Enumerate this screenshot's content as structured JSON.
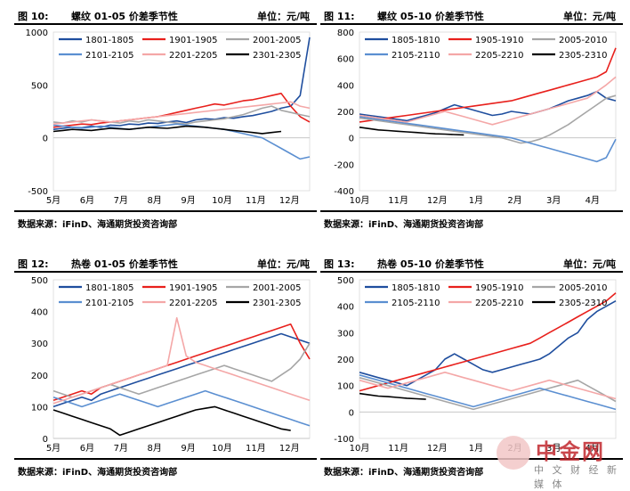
{
  "panels": [
    {
      "fig": "图 10:",
      "name": "螺纹 01-05 价差季节性",
      "unit": "单位：元/吨",
      "source": "数据来源：iFinD、海通期货投资咨询部"
    },
    {
      "fig": "图 11:",
      "name": "螺纹 05-10 价差季节性",
      "unit": "单位：元/吨",
      "source": "数据来源：iFinD、海通期货投资咨询部"
    },
    {
      "fig": "图 12:",
      "name": "热卷 01-05 价差季节性",
      "unit": "单位：元/吨",
      "source": "数据来源：iFinD、海通期货投资咨询部"
    },
    {
      "fig": "图 13:",
      "name": "热卷 05-10 价差季节性",
      "unit": "单位：元/吨",
      "source": "数据来源：iFinD、海通期货投资咨询部"
    }
  ],
  "watermark": {
    "brand": "中金网",
    "sub": "中 文 财 经 新 媒 体"
  },
  "chart_data": [
    {
      "type": "line",
      "ylim": [
        -500,
        1000
      ],
      "yticks": [
        -500,
        0,
        500,
        1000
      ],
      "xticks": [
        "5月",
        "6月",
        "7月",
        "8月",
        "9月",
        "10月",
        "11月",
        "12月"
      ],
      "legend": "top",
      "series": [
        {
          "name": "1801-1805",
          "color": "#1f4e9e",
          "y": [
            80,
            90,
            100,
            95,
            110,
            100,
            120,
            115,
            130,
            125,
            140,
            135,
            150,
            160,
            145,
            170,
            180,
            175,
            190,
            185,
            200,
            210,
            230,
            250,
            280,
            300,
            400,
            950
          ]
        },
        {
          "name": "1901-1905",
          "color": "#e8201c",
          "y": [
            100,
            110,
            120,
            130,
            125,
            140,
            150,
            160,
            170,
            180,
            190,
            200,
            220,
            240,
            260,
            280,
            300,
            320,
            310,
            330,
            350,
            360,
            380,
            400,
            420,
            300,
            200,
            150
          ]
        },
        {
          "name": "2001-2005",
          "color": "#a6a6a6",
          "y": [
            150,
            140,
            160,
            150,
            170,
            160,
            150,
            140,
            160,
            150,
            170,
            160,
            150,
            140,
            130,
            150,
            160,
            170,
            180,
            200,
            220,
            250,
            280,
            300,
            260,
            240,
            220,
            200
          ]
        },
        {
          "name": "2101-2105",
          "color": "#5b8fd1",
          "y": [
            120,
            110,
            100,
            90,
            100,
            110,
            100,
            90,
            80,
            90,
            100,
            110,
            120,
            130,
            120,
            110,
            100,
            90,
            80,
            60,
            40,
            20,
            0,
            -50,
            -100,
            -150,
            -200,
            -180
          ]
        },
        {
          "name": "2201-2205",
          "color": "#f4a7a7",
          "y": [
            130,
            140,
            150,
            160,
            170,
            160,
            150,
            160,
            170,
            180,
            190,
            200,
            210,
            220,
            230,
            240,
            250,
            260,
            270,
            280,
            290,
            300,
            310,
            320,
            330,
            340,
            300,
            280
          ]
        },
        {
          "name": "2301-2305",
          "color": "#000000",
          "y": [
            60,
            70,
            80,
            75,
            70,
            80,
            90,
            85,
            80,
            90,
            100,
            95,
            90,
            100,
            110,
            105,
            100,
            90,
            80,
            70,
            60,
            50,
            40,
            50,
            60
          ]
        }
      ]
    },
    {
      "type": "line",
      "ylim": [
        -400,
        800
      ],
      "yticks": [
        -400,
        -200,
        0,
        200,
        400,
        600,
        800
      ],
      "xticks": [
        "10月",
        "11月",
        "12月",
        "1月",
        "2月",
        "3月",
        "4月"
      ],
      "legend": "top",
      "series": [
        {
          "name": "1805-1810",
          "color": "#1f4e9e",
          "y": [
            180,
            170,
            160,
            150,
            140,
            130,
            150,
            170,
            190,
            220,
            250,
            230,
            210,
            190,
            170,
            180,
            200,
            190,
            180,
            200,
            220,
            250,
            280,
            300,
            320,
            350,
            300,
            280
          ]
        },
        {
          "name": "1905-1910",
          "color": "#e8201c",
          "y": [
            120,
            130,
            140,
            150,
            160,
            170,
            180,
            190,
            200,
            210,
            220,
            230,
            240,
            250,
            260,
            270,
            280,
            300,
            320,
            340,
            360,
            380,
            400,
            420,
            440,
            460,
            500,
            680
          ]
        },
        {
          "name": "2005-2010",
          "color": "#a6a6a6",
          "y": [
            150,
            140,
            130,
            120,
            110,
            100,
            90,
            80,
            70,
            60,
            50,
            40,
            30,
            20,
            10,
            0,
            -20,
            -40,
            -30,
            -10,
            20,
            60,
            100,
            150,
            200,
            250,
            300,
            320
          ]
        },
        {
          "name": "2105-2110",
          "color": "#5b8fd1",
          "y": [
            160,
            150,
            140,
            130,
            120,
            110,
            100,
            90,
            80,
            70,
            60,
            50,
            40,
            30,
            20,
            10,
            0,
            -20,
            -40,
            -60,
            -80,
            -100,
            -120,
            -140,
            -160,
            -180,
            -150,
            -10
          ]
        },
        {
          "name": "2205-2210",
          "color": "#f4a7a7",
          "y": [
            170,
            160,
            150,
            140,
            130,
            120,
            140,
            160,
            180,
            200,
            180,
            160,
            140,
            120,
            100,
            120,
            140,
            160,
            180,
            200,
            220,
            240,
            260,
            280,
            300,
            350,
            400,
            460
          ]
        },
        {
          "name": "2305-2310",
          "color": "#000000",
          "y": [
            80,
            70,
            60,
            55,
            50,
            45,
            40,
            35,
            30,
            28,
            25,
            22
          ]
        }
      ]
    },
    {
      "type": "line",
      "ylim": [
        0,
        500
      ],
      "yticks": [
        0,
        100,
        200,
        300,
        400,
        500
      ],
      "xticks": [
        "5月",
        "6月",
        "7月",
        "8月",
        "9月",
        "10月",
        "11月",
        "12月"
      ],
      "legend": "top",
      "series": [
        {
          "name": "1801-1805",
          "color": "#1f4e9e",
          "y": [
            100,
            110,
            120,
            130,
            120,
            140,
            150,
            160,
            170,
            180,
            190,
            200,
            210,
            220,
            230,
            240,
            250,
            260,
            270,
            280,
            290,
            300,
            310,
            320,
            330,
            320,
            310,
            300
          ]
        },
        {
          "name": "1901-1905",
          "color": "#e8201c",
          "y": [
            120,
            130,
            140,
            150,
            140,
            160,
            170,
            180,
            190,
            200,
            210,
            220,
            230,
            240,
            250,
            260,
            270,
            280,
            290,
            300,
            310,
            320,
            330,
            340,
            350,
            360,
            300,
            250
          ]
        },
        {
          "name": "2001-2005",
          "color": "#a6a6a6",
          "y": [
            150,
            140,
            130,
            140,
            150,
            160,
            170,
            160,
            150,
            140,
            150,
            160,
            170,
            180,
            190,
            200,
            210,
            220,
            230,
            220,
            210,
            200,
            190,
            180,
            200,
            220,
            250,
            300
          ]
        },
        {
          "name": "2101-2105",
          "color": "#5b8fd1",
          "y": [
            130,
            120,
            110,
            100,
            110,
            120,
            130,
            140,
            130,
            120,
            110,
            100,
            110,
            120,
            130,
            140,
            150,
            140,
            130,
            120,
            110,
            100,
            90,
            80,
            70,
            60,
            50,
            40
          ]
        },
        {
          "name": "2201-2205",
          "color": "#f4a7a7",
          "y": [
            110,
            120,
            130,
            140,
            150,
            160,
            170,
            180,
            190,
            200,
            210,
            220,
            230,
            380,
            260,
            240,
            230,
            220,
            210,
            200,
            190,
            180,
            170,
            160,
            150,
            140,
            130,
            120
          ]
        },
        {
          "name": "2301-2305",
          "color": "#000000",
          "y": [
            90,
            80,
            70,
            60,
            50,
            40,
            30,
            10,
            20,
            30,
            40,
            50,
            60,
            70,
            80,
            90,
            95,
            100,
            90,
            80,
            70,
            60,
            50,
            40,
            30,
            25
          ]
        }
      ]
    },
    {
      "type": "line",
      "ylim": [
        -100,
        500
      ],
      "yticks": [
        -100,
        0,
        100,
        200,
        300,
        400,
        500
      ],
      "xticks": [
        "10月",
        "11月",
        "12月",
        "1月",
        "2月",
        "3月",
        "4月"
      ],
      "legend": "top",
      "series": [
        {
          "name": "1805-1810",
          "color": "#1f4e9e",
          "y": [
            150,
            140,
            130,
            120,
            110,
            100,
            120,
            140,
            160,
            200,
            220,
            200,
            180,
            160,
            150,
            160,
            170,
            180,
            190,
            200,
            220,
            250,
            280,
            300,
            350,
            380,
            400,
            420
          ]
        },
        {
          "name": "1905-1910",
          "color": "#e8201c",
          "y": [
            80,
            90,
            100,
            110,
            120,
            130,
            140,
            150,
            160,
            170,
            180,
            190,
            200,
            210,
            220,
            230,
            240,
            250,
            260,
            280,
            300,
            320,
            340,
            360,
            380,
            400,
            420,
            450
          ]
        },
        {
          "name": "2005-2010",
          "color": "#a6a6a6",
          "y": [
            130,
            120,
            110,
            100,
            90,
            80,
            70,
            60,
            50,
            40,
            30,
            20,
            10,
            20,
            30,
            40,
            50,
            60,
            70,
            80,
            90,
            100,
            110,
            120,
            100,
            80,
            60,
            40
          ]
        },
        {
          "name": "2105-2110",
          "color": "#5b8fd1",
          "y": [
            140,
            130,
            120,
            110,
            100,
            90,
            80,
            70,
            60,
            50,
            40,
            30,
            20,
            30,
            40,
            50,
            60,
            70,
            80,
            90,
            80,
            70,
            60,
            50,
            40,
            30,
            20,
            10
          ]
        },
        {
          "name": "2205-2210",
          "color": "#f4a7a7",
          "y": [
            120,
            110,
            100,
            90,
            100,
            110,
            120,
            130,
            140,
            150,
            140,
            130,
            120,
            110,
            100,
            90,
            80,
            90,
            100,
            110,
            120,
            110,
            100,
            90,
            80,
            70,
            60,
            50
          ]
        },
        {
          "name": "2305-2310",
          "color": "#000000",
          "y": [
            70,
            65,
            60,
            58,
            55,
            52,
            50,
            48
          ]
        }
      ]
    }
  ]
}
